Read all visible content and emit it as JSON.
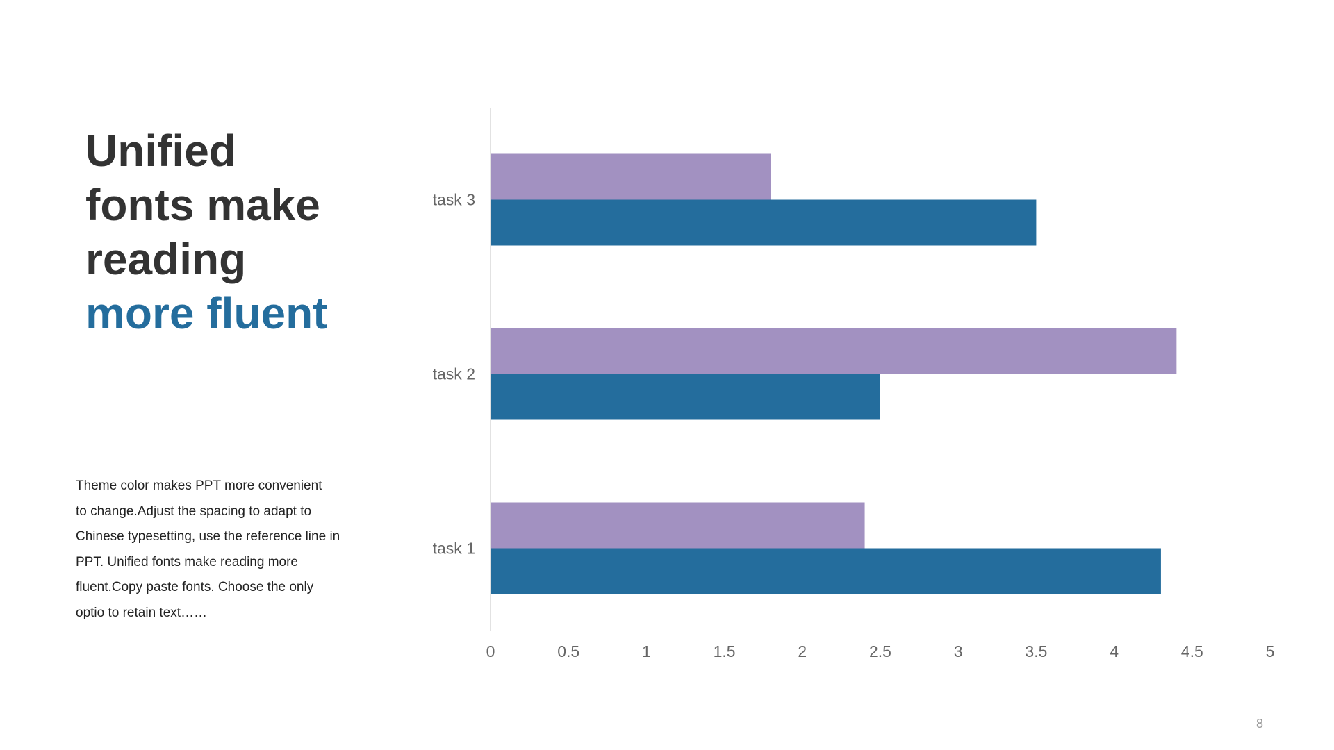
{
  "heading": {
    "lines": [
      "Unified",
      "fonts make",
      "reading"
    ],
    "accent_line": "more fluent",
    "color": "#333333",
    "accent_color": "#246D9D"
  },
  "body": {
    "lines": [
      "Theme  color makes PPT more convenient",
      "to change.Adjust  the spacing  to adapt to",
      "Chinese  typesetting, use the reference line in",
      "PPT. Unified  fonts make reading more",
      "fluent.Copy paste fonts. Choose  the only",
      "optio to retain text……"
    ]
  },
  "chart_data": {
    "type": "bar",
    "orientation": "horizontal",
    "categories": [
      "task 1",
      "task 2",
      "task 3"
    ],
    "series": [
      {
        "values": [
          4.3,
          2.5,
          3.5
        ],
        "color": "#246D9D"
      },
      {
        "values": [
          2.4,
          4.4,
          1.8
        ],
        "color": "#A291C1"
      }
    ],
    "xlim": [
      0,
      5
    ],
    "xticks": [
      "0",
      "0.5",
      "1",
      "1.5",
      "2",
      "2.5",
      "3",
      "3.5",
      "4",
      "4.5",
      "5"
    ],
    "grid": false,
    "legend": "none"
  },
  "page_number": "8"
}
